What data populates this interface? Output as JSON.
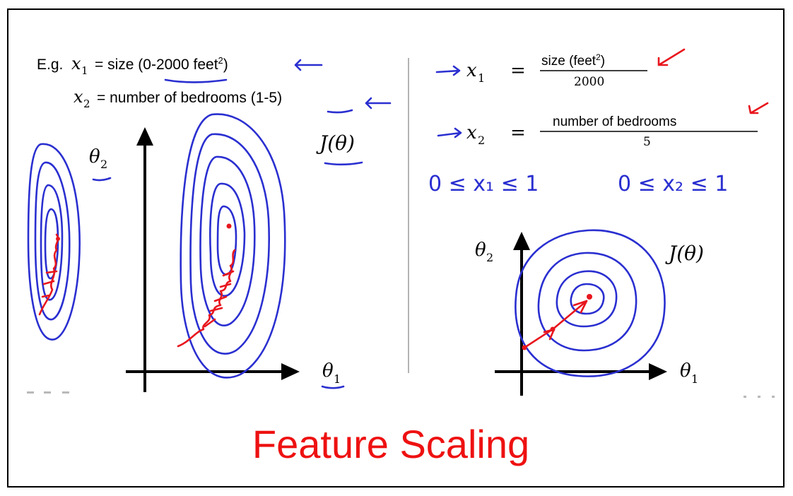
{
  "colors": {
    "ink_blue": "#2a2fd0",
    "ink_red": "#e8161d",
    "caption_red": "#ee1111",
    "axis_black": "#000000"
  },
  "left_panel": {
    "example_prefix": "E.g.",
    "x1_var": "x",
    "x1_sub": "1",
    "x1_desc_before": "= size (",
    "x1_range": "0-2000",
    "x1_unit": " feet",
    "x1_unit_sup": "2",
    "x1_close": ")",
    "x2_var": "x",
    "x2_sub": "2",
    "x2_desc_before": "= number of bedrooms (",
    "x2_range": "1-5",
    "x2_close": ")",
    "theta2_label": "θ",
    "theta2_sub": "2",
    "theta1_label": "θ",
    "theta1_sub": "1",
    "cost_label": "J(θ)"
  },
  "right_panel": {
    "x1_var": "x",
    "x1_sub": "1",
    "x1_eq": "=",
    "x1_numerator": "size (feet",
    "x1_numerator_sup": "2",
    "x1_numerator_close": ")",
    "x1_denominator": "2000",
    "x2_var": "x",
    "x2_sub": "2",
    "x2_eq": "=",
    "x2_numerator": "number of bedrooms",
    "x2_denominator": "5",
    "hand_range_x1": "0 ≤ x₁ ≤ 1",
    "hand_range_x2": "0 ≤ x₂ ≤ 1",
    "theta2_label": "θ",
    "theta2_sub": "2",
    "theta1_label": "θ",
    "theta1_sub": "1",
    "cost_label": "J(θ)"
  },
  "caption": "Feature Scaling"
}
